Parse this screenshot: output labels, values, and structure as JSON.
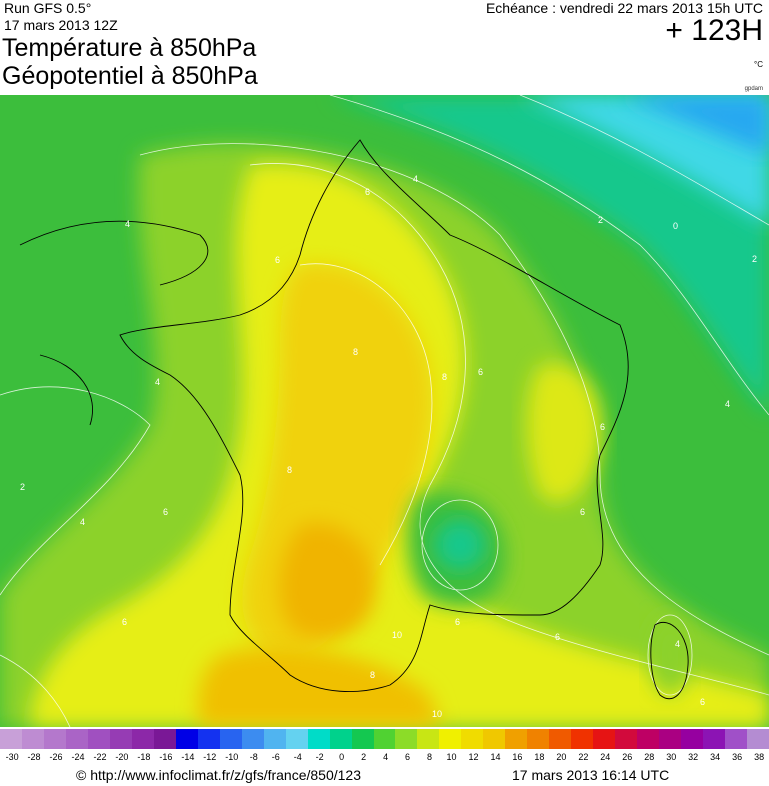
{
  "header": {
    "run": "Run GFS 0.5°",
    "run_date": "17 mars 2013 12Z",
    "title_line1": "Température à 850hPa",
    "title_line2": "Géopotentiel à 850hPa",
    "echeance": "Echéance : vendredi 22 mars 2013 15h UTC",
    "hours": "+ 123H",
    "unit": "°C",
    "credit": "gpdam"
  },
  "map": {
    "contour_labels": [
      "4",
      "4",
      "4",
      "4",
      "6",
      "6",
      "6",
      "6",
      "6",
      "6",
      "6",
      "6",
      "8",
      "8",
      "8",
      "8",
      "10",
      "10",
      "2",
      "2",
      "2",
      "0",
      "4",
      "4",
      "6",
      "6"
    ]
  },
  "scale": {
    "values": [
      "-30",
      "-28",
      "-26",
      "-24",
      "-22",
      "-20",
      "-18",
      "-16",
      "-14",
      "-12",
      "-10",
      "-8",
      "-6",
      "-4",
      "-2",
      "0",
      "2",
      "4",
      "6",
      "8",
      "10",
      "12",
      "14",
      "16",
      "18",
      "20",
      "22",
      "24",
      "26",
      "28",
      "30",
      "32",
      "34",
      "36",
      "38"
    ],
    "colors": [
      "#c8a0d8",
      "#be8cd2",
      "#b478cc",
      "#aa64c6",
      "#a050c0",
      "#963cb4",
      "#8c28a8",
      "#7a1896",
      "#0000e6",
      "#1432f0",
      "#2864f0",
      "#3c8cf0",
      "#50b4f0",
      "#64d2f0",
      "#00dcc8",
      "#00d28c",
      "#14c850",
      "#50d232",
      "#8cdc28",
      "#c8e614",
      "#f0f000",
      "#f0dc00",
      "#f0c800",
      "#f0a000",
      "#f08200",
      "#f05a00",
      "#f03200",
      "#e61414",
      "#d20a3c",
      "#be0064",
      "#aa0082",
      "#9600a0",
      "#8c14b4",
      "#a050c8",
      "#b48cd2"
    ]
  },
  "footer": {
    "url": "© http://www.infoclimat.fr/z/gfs/france/850/123",
    "timestamp": "17 mars 2013 16:14 UTC"
  }
}
